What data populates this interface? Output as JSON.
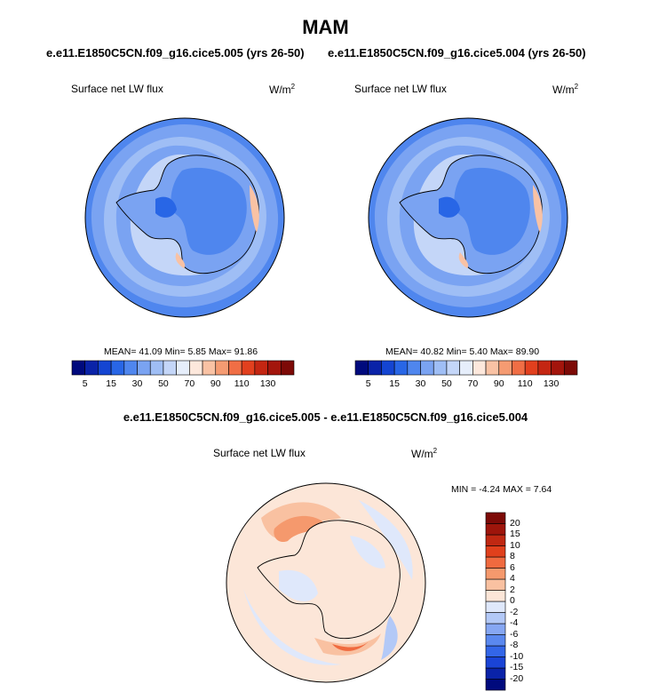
{
  "title": "MAM",
  "subtitles": {
    "left": "e.e11.E1850C5CN.f09_g16.cice5.005 (yrs 26-50)",
    "right": "e.e11.E1850C5CN.f09_g16.cice5.004 (yrs 26-50)"
  },
  "panels": [
    {
      "label": "Surface net LW flux",
      "units_base": "W/m",
      "units_exp": "2",
      "stats": "MEAN=  41.09  Min=   5.85  Max=  91.86"
    },
    {
      "label": "Surface net LW flux",
      "units_base": "W/m",
      "units_exp": "2",
      "stats": "MEAN=  40.82  Min=   5.40  Max=  89.90"
    }
  ],
  "colorbar": {
    "colors": [
      "#000a7d",
      "#0a23a8",
      "#1445d2",
      "#2866e6",
      "#4f86ee",
      "#7aa3f2",
      "#9fbef5",
      "#c4d6f8",
      "#e6eefb",
      "#fde8dc",
      "#f9c2a4",
      "#f59b72",
      "#f06e45",
      "#e2401e",
      "#c42612",
      "#a3150c",
      "#7d0a07"
    ],
    "labels": [
      "5",
      "15",
      "30",
      "50",
      "70",
      "90",
      "110",
      "130"
    ]
  },
  "diff": {
    "title": "e.e11.E1850C5CN.f09_g16.cice5.005 - e.e11.E1850C5CN.f09_g16.cice5.004",
    "label": "Surface net LW flux",
    "units_base": "W/m",
    "units_exp": "2",
    "minmax": "MIN =  -4.24 MAX =   7.64",
    "colorbar": {
      "colors": [
        "#000a7d",
        "#0a23a8",
        "#1a44d6",
        "#3366e8",
        "#5a88ef",
        "#86a7f3",
        "#b3c9f7",
        "#dfe8fb",
        "#fce6d8",
        "#f9c1a1",
        "#f5996d",
        "#f06a3f",
        "#e0401c",
        "#c02812",
        "#9e150b",
        "#7d0a07"
      ],
      "labels": [
        "20",
        "15",
        "10",
        "8",
        "6",
        "4",
        "2",
        "0",
        "-2",
        "-4",
        "-6",
        "-8",
        "-10",
        "-15",
        "-20"
      ]
    }
  }
}
